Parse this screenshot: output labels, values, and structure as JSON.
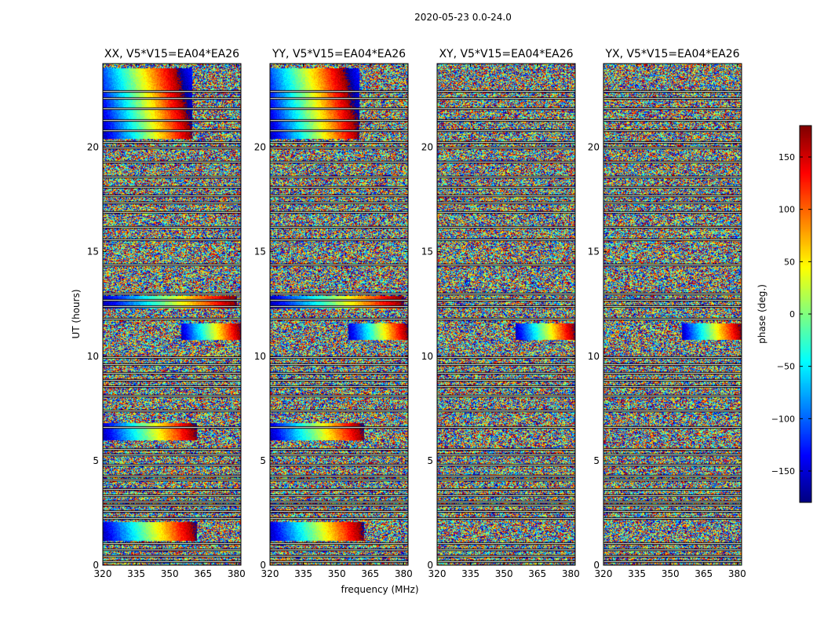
{
  "chart_data": {
    "type": "heatmap",
    "suptitle": "2020-05-23 0.0-24.0",
    "xlabel": "frequency (MHz)",
    "ylabel": "UT (hours)",
    "xlim": [
      320,
      382
    ],
    "ylim": [
      0,
      24
    ],
    "xticks": [
      320,
      335,
      350,
      365,
      380
    ],
    "yticks": [
      0,
      5,
      10,
      15,
      20
    ],
    "panels": [
      {
        "title": "XX, V5*V15=EA04*EA26",
        "pol": "XX"
      },
      {
        "title": "YY, V5*V15=EA04*EA26",
        "pol": "YY"
      },
      {
        "title": "XY, V5*V15=EA04*EA26",
        "pol": "XY"
      },
      {
        "title": "YX, V5*V15=EA04*EA26",
        "pol": "YX"
      }
    ],
    "colorbar": {
      "label": "phase (deg.)",
      "range": [
        -180,
        180
      ],
      "ticks": [
        150,
        100,
        50,
        0,
        -50,
        -100,
        -150
      ],
      "tick_labels": [
        "150",
        "100",
        "50",
        "0",
        "−50",
        "−100",
        "−150"
      ],
      "colormap": "jet"
    },
    "flagged_gaps_ut": [
      0.2,
      0.45,
      0.75,
      1.05,
      2.25,
      2.6,
      2.9,
      3.05,
      3.35,
      3.65,
      4.1,
      4.3,
      4.8,
      5.3,
      5.55,
      6.6,
      7.4,
      8.1,
      8.55,
      8.85,
      9.2,
      9.6,
      9.95,
      11.8,
      12.4,
      12.7,
      13.0,
      14.4,
      15.6,
      16.2,
      16.9,
      17.35,
      17.7,
      18.1,
      18.6,
      19.3,
      20.0,
      20.25,
      20.8,
      21.3,
      21.85,
      22.35,
      22.7
    ],
    "coherent_features": [
      {
        "panels": [
          "XX",
          "YY"
        ],
        "ut_range": [
          1.2,
          2.1
        ],
        "freq_range": [
          320,
          362
        ],
        "description": "broad phase gradient"
      },
      {
        "panels": [
          "XX",
          "YY"
        ],
        "ut_range": [
          6.0,
          6.8
        ],
        "freq_range": [
          320,
          362
        ]
      },
      {
        "panels": [
          "XX",
          "YY"
        ],
        "ut_range": [
          12.3,
          12.9
        ],
        "freq_range": [
          320,
          380
        ]
      },
      {
        "panels": [
          "XX",
          "YY"
        ],
        "ut_range": [
          20.4,
          23.8
        ],
        "freq_range": [
          320,
          360
        ]
      },
      {
        "panels": [
          "XX",
          "YY",
          "XY",
          "YX"
        ],
        "ut_range": [
          10.8,
          11.6
        ],
        "freq_range": [
          355,
          382
        ]
      }
    ]
  }
}
